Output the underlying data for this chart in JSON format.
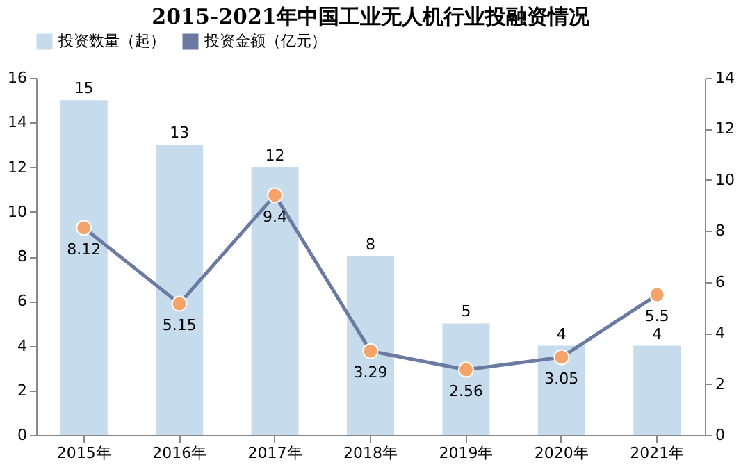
{
  "chart_data": {
    "type": "bar",
    "title": "2015-2021年中国工业无人机行业投融资情况",
    "categories": [
      "2015年",
      "2016年",
      "2017年",
      "2018年",
      "2019年",
      "2020年",
      "2021年"
    ],
    "series": [
      {
        "name": "投资数量（起）",
        "color": "#c6dcec",
        "values": [
          15,
          13,
          12,
          8,
          5,
          4,
          4
        ]
      },
      {
        "name": "投资金额（亿元）",
        "type": "line",
        "axis": "y2",
        "color": "#6b7aa1",
        "values": [
          8.12,
          5.15,
          9.4,
          3.29,
          2.56,
          3.05,
          5.5
        ]
      }
    ],
    "ylim": [
      0,
      16
    ],
    "yticks": [
      0,
      2,
      4,
      6,
      8,
      10,
      12,
      14,
      16
    ],
    "y2lim": [
      0,
      14
    ],
    "y2ticks": [
      0,
      2,
      4,
      6,
      8,
      10,
      12,
      14
    ],
    "marker": "circle",
    "line_style": "solid",
    "data_labels": true,
    "legend": "top",
    "grid": false
  }
}
